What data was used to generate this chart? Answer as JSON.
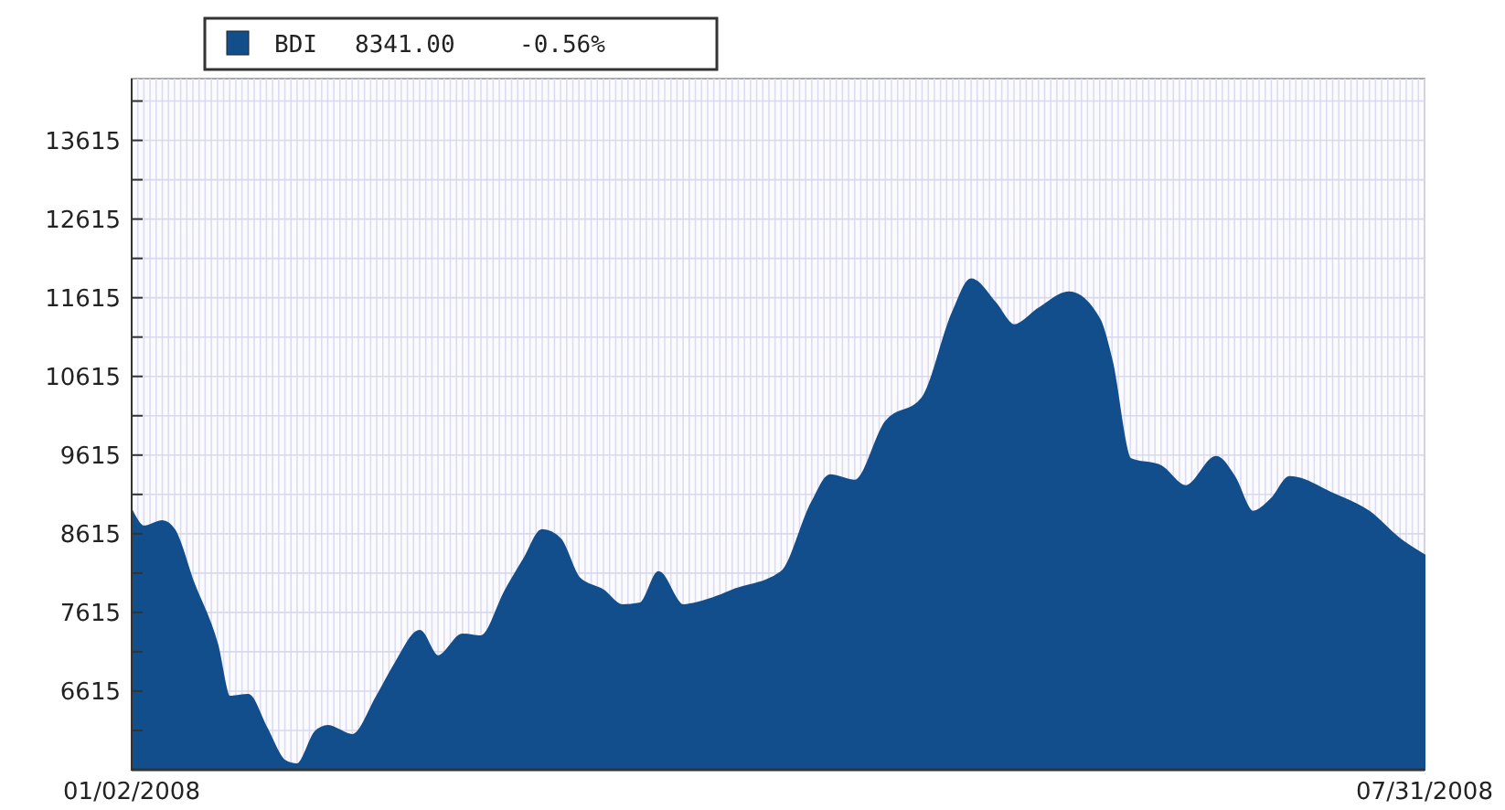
{
  "chart_data": {
    "type": "area",
    "x": [
      "2008-01-02",
      "2008-01-04",
      "2008-01-07",
      "2008-01-09",
      "2008-01-12",
      "2008-01-16",
      "2008-01-18",
      "2008-01-21",
      "2008-01-24",
      "2008-01-27",
      "2008-01-29",
      "2008-02-01",
      "2008-02-03",
      "2008-02-07",
      "2008-02-11",
      "2008-02-14",
      "2008-02-18",
      "2008-02-21",
      "2008-02-25",
      "2008-02-28",
      "2008-03-03",
      "2008-03-06",
      "2008-03-09",
      "2008-03-12",
      "2008-03-15",
      "2008-03-19",
      "2008-03-22",
      "2008-03-25",
      "2008-03-28",
      "2008-04-01",
      "2008-04-06",
      "2008-04-09",
      "2008-04-17",
      "2008-04-22",
      "2008-04-25",
      "2008-04-29",
      "2008-05-04",
      "2008-05-10",
      "2008-05-15",
      "2008-05-18",
      "2008-05-22",
      "2008-05-25",
      "2008-05-29",
      "2008-06-03",
      "2008-06-08",
      "2008-06-10",
      "2008-06-13",
      "2008-06-18",
      "2008-06-22",
      "2008-06-27",
      "2008-06-30",
      "2008-07-03",
      "2008-07-06",
      "2008-07-09",
      "2008-07-16",
      "2008-07-22",
      "2008-07-27",
      "2008-07-31"
    ],
    "series": [
      {
        "name": "BDI",
        "color": "#124e8c",
        "values": [
          8917,
          8708,
          8777,
          8661,
          8010,
          7200,
          6545,
          6568,
          6150,
          5730,
          5685,
          6100,
          6173,
          6057,
          6545,
          6964,
          7382,
          7057,
          7336,
          7313,
          7894,
          8289,
          8661,
          8545,
          8057,
          7894,
          7708,
          7731,
          8127,
          7708,
          7801,
          7894,
          8127,
          9010,
          9359,
          9289,
          10033,
          10336,
          11429,
          11848,
          11545,
          11266,
          11476,
          11685,
          11336,
          10801,
          9568,
          9475,
          9220,
          9592,
          9336,
          8894,
          9057,
          9336,
          9126,
          8894,
          8545,
          8341
        ]
      }
    ],
    "annotations": [
      "8341.00",
      "-0.56%"
    ],
    "xlim": [
      "2008-01-02",
      "2008-07-31"
    ],
    "xticks": [
      {
        "value": "2008-01-02",
        "label": "01/02/2008"
      },
      {
        "value": "2008-07-31",
        "label": "07/31/2008"
      }
    ],
    "ylim": [
      5615,
      14400
    ],
    "yticks": [
      {
        "value": 5615,
        "label": null
      },
      {
        "value": 6115,
        "label": null
      },
      6615,
      {
        "value": 7115,
        "label": null
      },
      7615,
      {
        "value": 8115,
        "label": null
      },
      8615,
      {
        "value": 9115,
        "label": null
      },
      9615,
      {
        "value": 10115,
        "label": null
      },
      10615,
      {
        "value": 11115,
        "label": null
      },
      11615,
      {
        "value": 12115,
        "label": null
      },
      12615,
      {
        "value": 13115,
        "label": null
      },
      13615,
      {
        "value": 14115,
        "label": null
      }
    ],
    "grid": true,
    "legend": "top left"
  }
}
